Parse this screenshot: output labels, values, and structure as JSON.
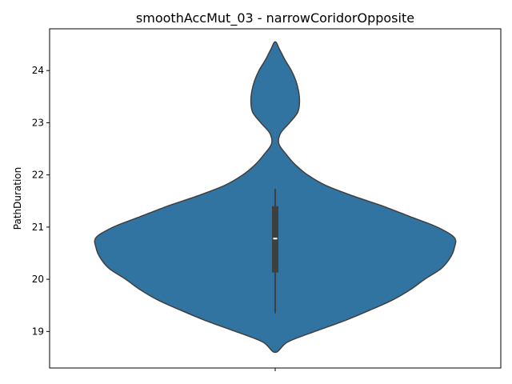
{
  "chart_data": {
    "type": "violin",
    "title": "smoothAccMut_03 - narrowCoridorOpposite",
    "xlabel": "",
    "ylabel": "PathDuration",
    "ylim": [
      18.3,
      24.8
    ],
    "yticks": [
      19,
      20,
      21,
      22,
      23,
      24
    ],
    "grid": false,
    "legend": "none",
    "color": "#3274a1",
    "edge_color": "#3f3f3f",
    "distribution": {
      "y": [
        18.6,
        18.8,
        19.0,
        19.2,
        19.4,
        19.6,
        19.8,
        20.0,
        20.2,
        20.4,
        20.6,
        20.8,
        21.0,
        21.2,
        21.4,
        21.6,
        21.8,
        22.0,
        22.2,
        22.4,
        22.6,
        22.8,
        23.0,
        23.2,
        23.4,
        23.6,
        23.8,
        24.0,
        24.2,
        24.4,
        24.55
      ],
      "density": [
        0.0,
        0.07,
        0.22,
        0.38,
        0.52,
        0.65,
        0.75,
        0.83,
        0.92,
        0.97,
        0.995,
        0.995,
        0.9,
        0.75,
        0.6,
        0.43,
        0.28,
        0.18,
        0.11,
        0.06,
        0.02,
        0.03,
        0.08,
        0.125,
        0.135,
        0.13,
        0.115,
        0.09,
        0.055,
        0.025,
        0.0
      ]
    },
    "box": {
      "q1": 20.13,
      "median": 20.78,
      "q3": 21.4,
      "whisker_low": 19.35,
      "whisker_high": 21.73
    }
  }
}
